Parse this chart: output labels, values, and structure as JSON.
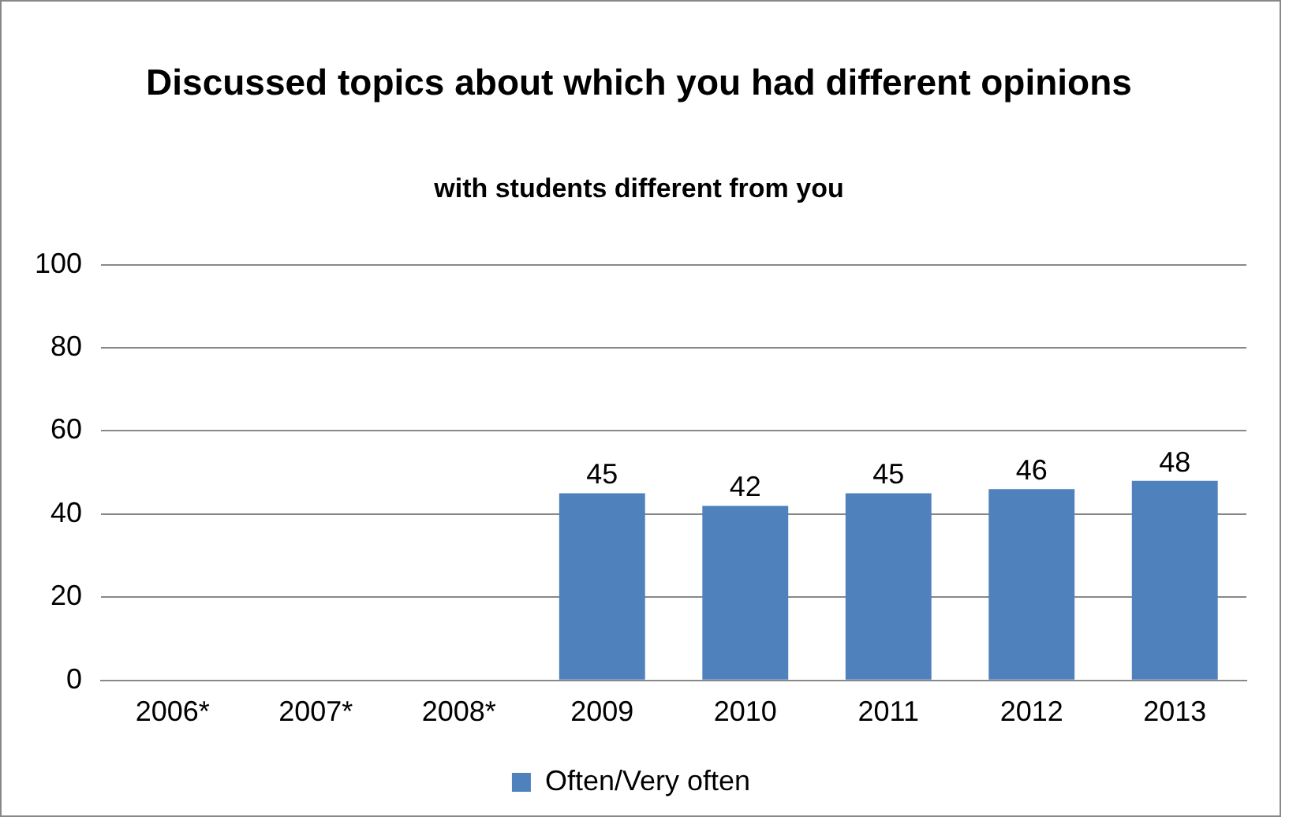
{
  "chart_data": {
    "type": "bar",
    "title": "Discussed topics about which you had different opinions",
    "subtitle": "with students different from you",
    "categories": [
      "2006*",
      "2007*",
      "2008*",
      "2009",
      "2010",
      "2011",
      "2012",
      "2013"
    ],
    "series": [
      {
        "name": "Often/Very often",
        "color": "#4f81bd",
        "values": [
          null,
          null,
          null,
          45,
          42,
          45,
          46,
          48
        ]
      }
    ],
    "ylim": [
      0,
      100
    ],
    "yticks": [
      0,
      20,
      40,
      60,
      80,
      100
    ],
    "grid": "y",
    "legend": "bottom",
    "data_labels": true
  }
}
